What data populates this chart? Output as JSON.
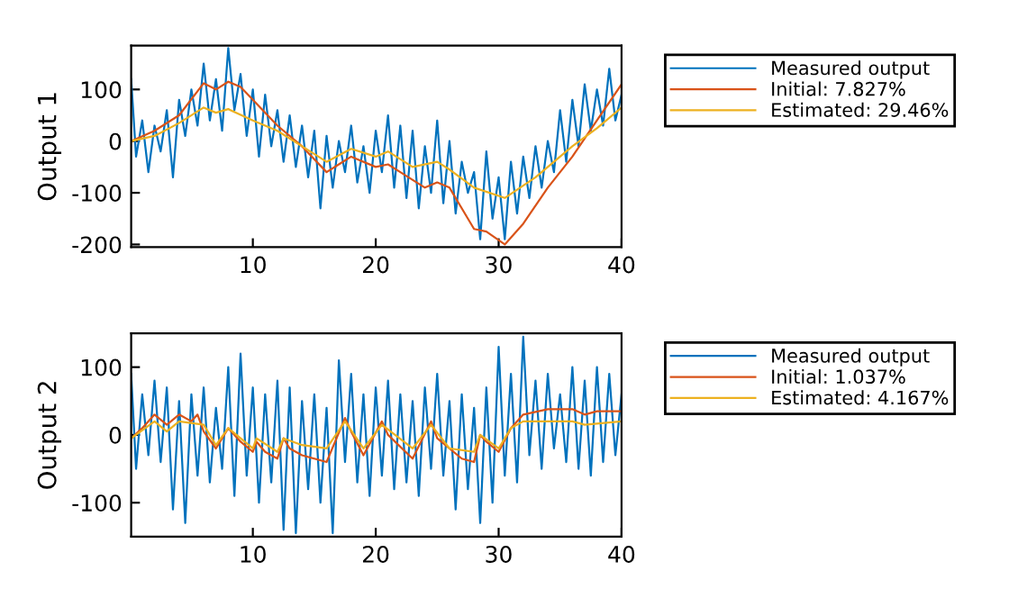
{
  "chart_data": [
    {
      "type": "line",
      "ylabel": "Output 1",
      "xlim": [
        0.1,
        40
      ],
      "ylim": [
        -205,
        185
      ],
      "xticks": [
        10,
        20,
        30,
        40
      ],
      "yticks": [
        -200,
        -100,
        0,
        100
      ],
      "legend": "top right",
      "grid": false,
      "series": [
        {
          "name": "Measured output",
          "color": "#0072bd",
          "x": [
            0.1,
            0.5,
            1,
            1.5,
            2,
            2.5,
            3,
            3.5,
            4,
            4.5,
            5,
            5.5,
            6,
            6.5,
            7,
            7.5,
            8,
            8.5,
            9,
            9.5,
            10,
            10.5,
            11,
            11.5,
            12,
            12.5,
            13,
            13.5,
            14,
            14.5,
            15,
            15.5,
            16,
            16.5,
            17,
            17.5,
            18,
            18.5,
            19,
            19.5,
            20,
            20.5,
            21,
            21.5,
            22,
            22.5,
            23,
            23.5,
            24,
            24.5,
            25,
            25.5,
            26,
            26.5,
            27,
            27.5,
            28,
            28.5,
            29,
            29.5,
            30,
            30.5,
            31,
            31.5,
            32,
            32.5,
            33,
            33.5,
            34,
            34.5,
            35,
            35.5,
            36,
            36.5,
            37,
            37.5,
            38,
            38.5,
            39,
            39.5,
            40
          ],
          "values": [
            120,
            -30,
            40,
            -60,
            30,
            -20,
            60,
            -70,
            80,
            10,
            100,
            30,
            150,
            40,
            120,
            20,
            180,
            60,
            130,
            10,
            100,
            -30,
            90,
            -10,
            60,
            -40,
            50,
            -50,
            30,
            -70,
            20,
            -130,
            10,
            -90,
            0,
            -60,
            30,
            -80,
            -10,
            -100,
            20,
            -60,
            50,
            -90,
            30,
            -110,
            20,
            -130,
            -10,
            -100,
            40,
            -120,
            0,
            -140,
            -40,
            -100,
            -60,
            -190,
            -20,
            -150,
            -70,
            -190,
            -40,
            -140,
            -30,
            -110,
            -10,
            -90,
            0,
            -60,
            60,
            -40,
            80,
            -10,
            110,
            20,
            100,
            30,
            140,
            40,
            90
          ]
        },
        {
          "name": "Initial: 7.827%",
          "color": "#d95319",
          "x": [
            0.1,
            2,
            4,
            6,
            7,
            8,
            9,
            10,
            12,
            14,
            16,
            17,
            18,
            20,
            21,
            22,
            24,
            25,
            26,
            28,
            29,
            30.5,
            32,
            34,
            36,
            38,
            40
          ],
          "values": [
            0,
            20,
            50,
            112,
            100,
            115,
            105,
            80,
            30,
            -10,
            -60,
            -45,
            -30,
            -50,
            -45,
            -60,
            -90,
            -80,
            -90,
            -170,
            -175,
            -200,
            -160,
            -90,
            -30,
            40,
            110
          ]
        },
        {
          "name": "Estimated: 29.46%",
          "color": "#edb120",
          "x": [
            0.1,
            2,
            4,
            6,
            7,
            8,
            10,
            12,
            14,
            16,
            18,
            20,
            21,
            23,
            25,
            26,
            28,
            30.5,
            33,
            36,
            38,
            40
          ],
          "values": [
            0,
            10,
            35,
            65,
            55,
            62,
            40,
            20,
            -10,
            -40,
            -15,
            -30,
            -20,
            -50,
            -40,
            -55,
            -90,
            -110,
            -70,
            -10,
            25,
            65
          ]
        }
      ]
    },
    {
      "type": "line",
      "ylabel": "Output 2",
      "xlim": [
        0.1,
        40
      ],
      "ylim": [
        -150,
        150
      ],
      "xticks": [
        10,
        20,
        30,
        40
      ],
      "yticks": [
        -100,
        0,
        100
      ],
      "legend": "top right",
      "grid": false,
      "series": [
        {
          "name": "Measured output",
          "color": "#0072bd",
          "x": [
            0.1,
            0.5,
            1,
            1.5,
            2,
            2.5,
            3,
            3.5,
            4,
            4.5,
            5,
            5.5,
            6,
            6.5,
            7,
            7.5,
            8,
            8.5,
            9,
            9.5,
            10,
            10.5,
            11,
            11.5,
            12,
            12.5,
            13,
            13.5,
            14,
            14.5,
            15,
            15.5,
            16,
            16.5,
            17,
            17.5,
            18,
            18.5,
            19,
            19.5,
            20,
            20.5,
            21,
            21.5,
            22,
            22.5,
            23,
            23.5,
            24,
            24.5,
            25,
            25.5,
            26,
            26.5,
            27,
            27.5,
            28,
            28.5,
            29,
            29.5,
            30,
            30.5,
            31,
            31.5,
            32,
            32.5,
            33,
            33.5,
            34,
            34.5,
            35,
            35.5,
            36,
            36.5,
            37,
            37.5,
            38,
            38.5,
            39,
            39.5,
            40
          ],
          "values": [
            90,
            -50,
            60,
            -30,
            80,
            -40,
            70,
            -110,
            50,
            -130,
            60,
            -60,
            70,
            -70,
            40,
            -50,
            100,
            -90,
            120,
            -60,
            70,
            -100,
            60,
            -70,
            80,
            -140,
            70,
            -145,
            50,
            -80,
            60,
            -100,
            40,
            -145,
            110,
            -40,
            90,
            -70,
            60,
            -90,
            70,
            -60,
            80,
            -80,
            60,
            -70,
            50,
            -90,
            70,
            -50,
            90,
            -60,
            50,
            -110,
            60,
            -80,
            40,
            -130,
            70,
            -100,
            130,
            -60,
            90,
            -70,
            145,
            -30,
            80,
            -50,
            90,
            -20,
            60,
            -40,
            100,
            -50,
            80,
            -60,
            100,
            -40,
            90,
            -30,
            60
          ]
        },
        {
          "name": "Initial: 1.037%",
          "color": "#d95319",
          "x": [
            0.1,
            1,
            2,
            3,
            4,
            5,
            5.5,
            6,
            7,
            8,
            9,
            10,
            10.3,
            11,
            12,
            12.5,
            13,
            14,
            16,
            17.5,
            18,
            19,
            20.5,
            21,
            23,
            24.5,
            25,
            27,
            28,
            28.5,
            29,
            30,
            31,
            32,
            34,
            36,
            37,
            38,
            40
          ],
          "values": [
            -5,
            10,
            30,
            15,
            30,
            20,
            30,
            5,
            -20,
            10,
            -10,
            -25,
            -10,
            -25,
            -35,
            -5,
            -20,
            -30,
            -40,
            25,
            5,
            -30,
            20,
            0,
            -35,
            20,
            -5,
            -35,
            -40,
            0,
            -10,
            -25,
            10,
            30,
            38,
            38,
            30,
            35,
            35
          ]
        },
        {
          "name": "Estimated: 4.167%",
          "color": "#edb120",
          "x": [
            0.1,
            2,
            3,
            4,
            6,
            7,
            8,
            9,
            10,
            10.3,
            12,
            12.5,
            14,
            16,
            17.5,
            19,
            20.5,
            23,
            24.5,
            26,
            28,
            28.5,
            30,
            31,
            32,
            34,
            36,
            37,
            40
          ],
          "values": [
            -5,
            20,
            5,
            20,
            15,
            -15,
            10,
            -5,
            -20,
            -5,
            -25,
            -5,
            -15,
            -20,
            20,
            -20,
            15,
            -20,
            15,
            -20,
            -25,
            0,
            -20,
            10,
            20,
            20,
            20,
            15,
            20
          ]
        }
      ]
    }
  ]
}
